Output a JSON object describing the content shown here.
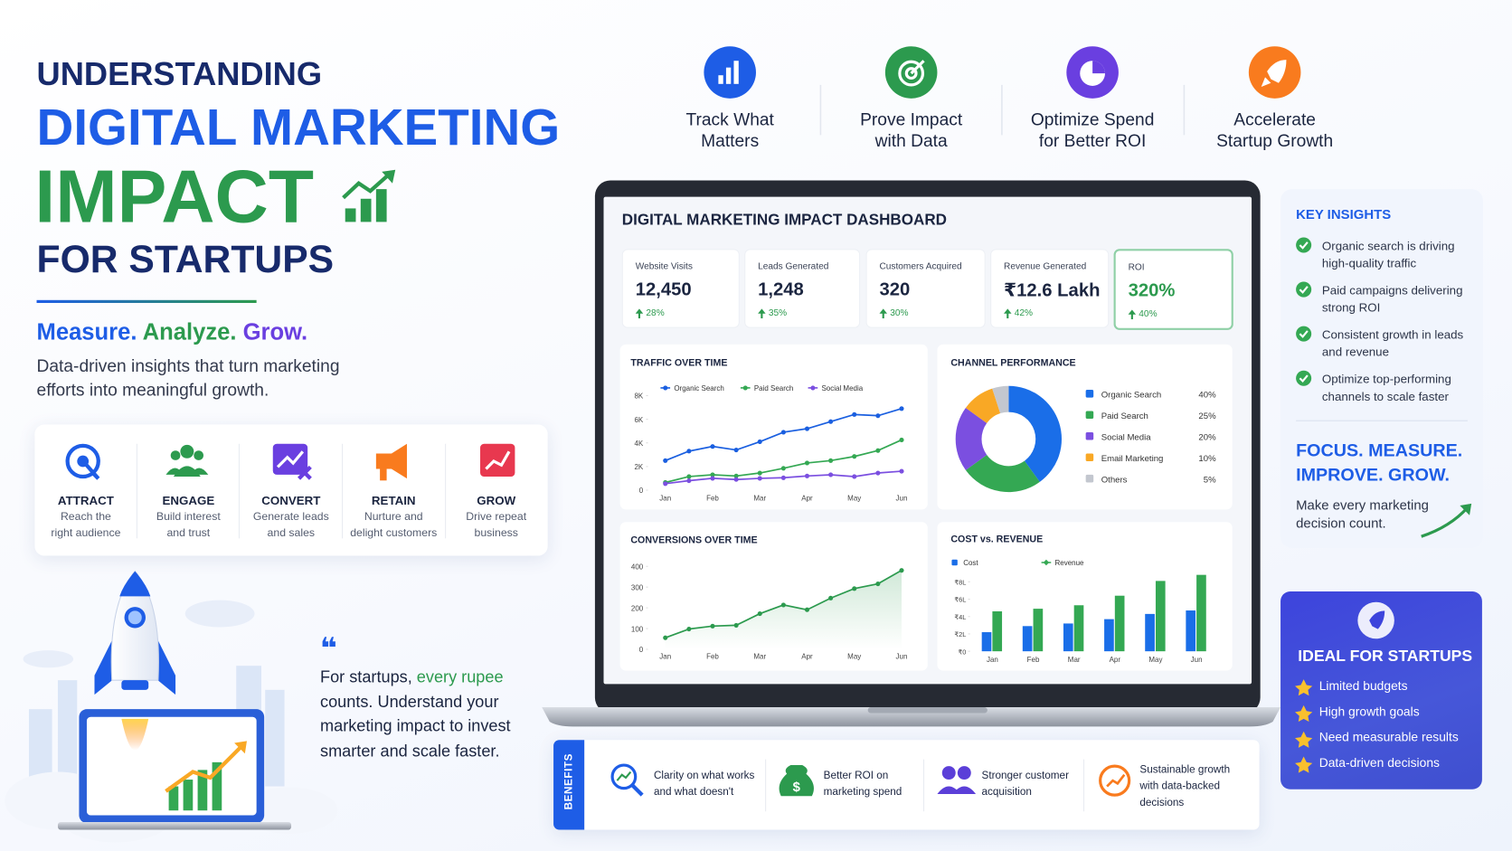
{
  "header": {
    "kicker": "UNDERSTANDING",
    "title_blue": "DIGITAL MARKETING",
    "title_green": "IMPACT",
    "subtitle": "FOR STARTUPS"
  },
  "tagline": {
    "word1": "Measure.",
    "word2": "Analyze.",
    "word3": "Grow.",
    "description": "Data-driven insights that turn marketing efforts into meaningful growth."
  },
  "pillars": [
    {
      "lines": [
        "Track What",
        "Matters"
      ]
    },
    {
      "lines": [
        "Prove Impact",
        "with Data"
      ]
    },
    {
      "lines": [
        "Optimize Spend",
        "for Better ROI"
      ]
    },
    {
      "lines": [
        "Accelerate",
        "Startup Growth"
      ]
    }
  ],
  "funnel": [
    {
      "title": "ATTRACT",
      "lines": [
        "Reach the",
        "right audience"
      ]
    },
    {
      "title": "ENGAGE",
      "lines": [
        "Build interest",
        "and trust"
      ]
    },
    {
      "title": "CONVERT",
      "lines": [
        "Generate leads",
        "and sales"
      ]
    },
    {
      "title": "RETAIN",
      "lines": [
        "Nurture and",
        "delight customers"
      ]
    },
    {
      "title": "GROW",
      "lines": [
        "Drive repeat",
        "business"
      ]
    }
  ],
  "quote": {
    "lead": "For startups,",
    "highlight": "every rupee",
    "rest": "counts. Understand your marketing impact to invest smarter and scale faster."
  },
  "dashboard": {
    "title": "DIGITAL MARKETING IMPACT DASHBOARD",
    "kpis": [
      {
        "label": "Website Visits",
        "value": "12,450",
        "change": "28%"
      },
      {
        "label": "Leads Generated",
        "value": "1,248",
        "change": "35%"
      },
      {
        "label": "Customers Acquired",
        "value": "320",
        "change": "30%"
      },
      {
        "label": "Revenue Generated",
        "value": "₹12.6 Lakh",
        "change": "42%"
      },
      {
        "label": "ROI",
        "value": "320%",
        "change": "40%"
      }
    ],
    "traffic": {
      "type": "line",
      "title": "TRAFFIC OVER TIME",
      "categories": [
        "Jan",
        null,
        "Feb",
        null,
        "Mar",
        null,
        "Apr",
        null,
        "May",
        null,
        "Jun"
      ],
      "series": [
        {
          "name": "Organic Search",
          "color": "#1a5fe0",
          "values": [
            2500,
            3300,
            3700,
            3400,
            4100,
            4900,
            5200,
            5800,
            6400,
            6300,
            6900
          ]
        },
        {
          "name": "Paid Search",
          "color": "#34a853",
          "values": [
            650,
            1150,
            1300,
            1200,
            1450,
            1850,
            2300,
            2500,
            2850,
            3350,
            4250
          ]
        },
        {
          "name": "Social Media",
          "color": "#7b4fe0",
          "values": [
            550,
            800,
            1000,
            900,
            1000,
            1050,
            1200,
            1300,
            1150,
            1450,
            1600
          ]
        }
      ],
      "ylim": [
        0,
        8000
      ],
      "yticks": [
        0,
        {
          "value": 2000,
          "label": "2K"
        },
        {
          "value": 4000,
          "label": "4K"
        },
        {
          "value": 6000,
          "label": "6K"
        },
        {
          "value": 8000,
          "label": "8K"
        }
      ]
    },
    "channels": {
      "type": "pie",
      "title": "CHANNEL PERFORMANCE",
      "categories": [
        "Organic Search",
        "Paid Search",
        "Social Media",
        "Email Marketing",
        "Others"
      ],
      "values": [
        40,
        25,
        20,
        10,
        5
      ],
      "value_labels": [
        "40%",
        "25%",
        "20%",
        "10%",
        "5%"
      ],
      "colors": [
        "#1a6ee8",
        "#34a853",
        "#7b4fe0",
        "#f9a825",
        "#c3c7cf"
      ]
    },
    "conversions": {
      "type": "line",
      "title": "CONVERSIONS OVER TIME",
      "categories": [
        "Jan",
        null,
        "Feb",
        null,
        "Mar",
        null,
        "Apr",
        null,
        "May",
        null,
        "Jun"
      ],
      "values": [
        56,
        98,
        112,
        116,
        172,
        214,
        191,
        247,
        293,
        316,
        381
      ],
      "color": "#2c9a4e",
      "area": true,
      "ylim": [
        0,
        400
      ],
      "yticks": [
        0,
        100,
        200,
        300,
        400
      ]
    },
    "cost_revenue": {
      "type": "bar",
      "title": "COST vs. REVENUE",
      "categories": [
        "Jan",
        "Feb",
        "Mar",
        "Apr",
        "May",
        "Jun"
      ],
      "series": [
        {
          "name": "Cost",
          "color": "#1a6ee8",
          "values": [
            220000,
            290000,
            320000,
            370000,
            430000,
            470000
          ]
        },
        {
          "name": "Revenue",
          "color": "#34a853",
          "values": [
            460000,
            490000,
            530000,
            640000,
            810000,
            880000
          ]
        }
      ],
      "ylim": [
        0,
        900000
      ],
      "yticks": [
        {
          "value": 0,
          "label": "₹0"
        },
        {
          "value": 200000,
          "label": "₹2L"
        },
        {
          "value": 400000,
          "label": "₹4L"
        },
        {
          "value": 600000,
          "label": "₹6L"
        },
        {
          "value": 800000,
          "label": "₹8L"
        }
      ]
    }
  },
  "insights": {
    "title": "KEY INSIGHTS",
    "items": [
      "Organic search is driving high-quality traffic",
      "Paid campaigns delivering strong ROI",
      "Consistent growth in leads and revenue",
      "Optimize top-performing channels to scale faster"
    ],
    "focus": "FOCUS. MEASURE. IMPROVE. GROW.",
    "focus_text": "Make every marketing decision count."
  },
  "ideal": {
    "title": "IDEAL FOR STARTUPS",
    "items": [
      "Limited budgets",
      "High growth goals",
      "Need measurable results",
      "Data-driven decisions"
    ]
  },
  "benefits": {
    "label": "BENEFITS",
    "items": [
      "Clarity on what works and what doesn't",
      "Better ROI on marketing spend",
      "Stronger customer acquisition",
      "Sustainable growth with data-backed decisions"
    ]
  }
}
